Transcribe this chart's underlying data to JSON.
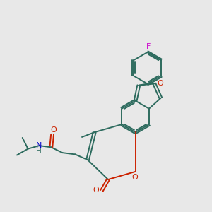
{
  "background_color": "#e8e8e8",
  "bond_color": "#2d6b5e",
  "oxygen_color": "#cc2200",
  "nitrogen_color": "#0000cc",
  "fluorine_color": "#cc00cc",
  "figsize": [
    3.0,
    3.0
  ],
  "dpi": 100,
  "xlim": [
    0,
    10
  ],
  "ylim": [
    0,
    10
  ]
}
